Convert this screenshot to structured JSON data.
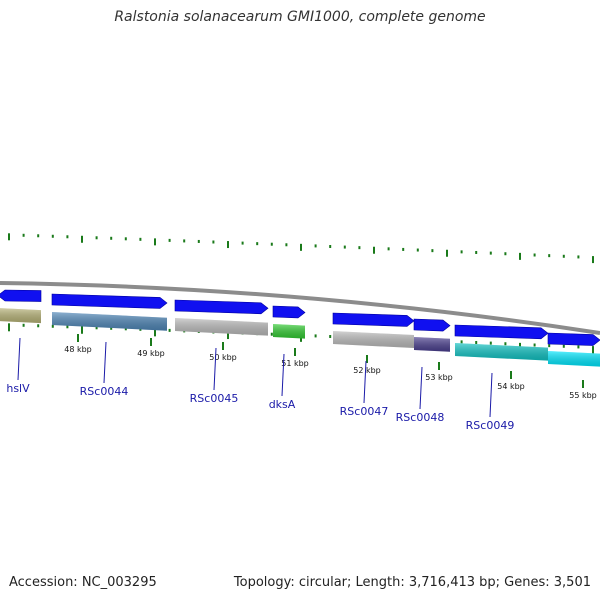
{
  "title": "Ralstonia solanacearum GMI1000, complete genome",
  "footer": {
    "accession": "Accession: NC_003295",
    "info": "Topology: circular; Length: 3,716,413 bp; Genes: 3,501"
  },
  "colors": {
    "cds_arrow": "#1010f0",
    "backbone": "#8c8c8c",
    "gc_ticks": "#1a7a1a",
    "label": "#1a1aa8"
  },
  "kbp_labels": [
    "48 kbp",
    "49 kbp",
    "50 kbp",
    "51 kbp",
    "52 kbp",
    "53 kbp",
    "54 kbp",
    "55 kbp"
  ],
  "genes": [
    {
      "name": "hslV",
      "strand": "reverse",
      "color": "#b8b478"
    },
    {
      "name": "RSc0044",
      "strand": "forward",
      "color": "#4f87b8"
    },
    {
      "name": "RSc0045",
      "strand": "forward",
      "color": "#bcbcbc"
    },
    {
      "name": "dksA",
      "strand": "forward",
      "color": "#33cc33"
    },
    {
      "name": "RSc0047",
      "strand": "forward",
      "color": "#bcbcbc"
    },
    {
      "name": "RSc0048",
      "strand": "forward",
      "color": "#4a3f8f"
    },
    {
      "name": "RSc0049",
      "strand": "forward",
      "color": "#11c4c4"
    },
    {
      "name": "",
      "strand": "forward",
      "color": "#00e8ff"
    }
  ]
}
